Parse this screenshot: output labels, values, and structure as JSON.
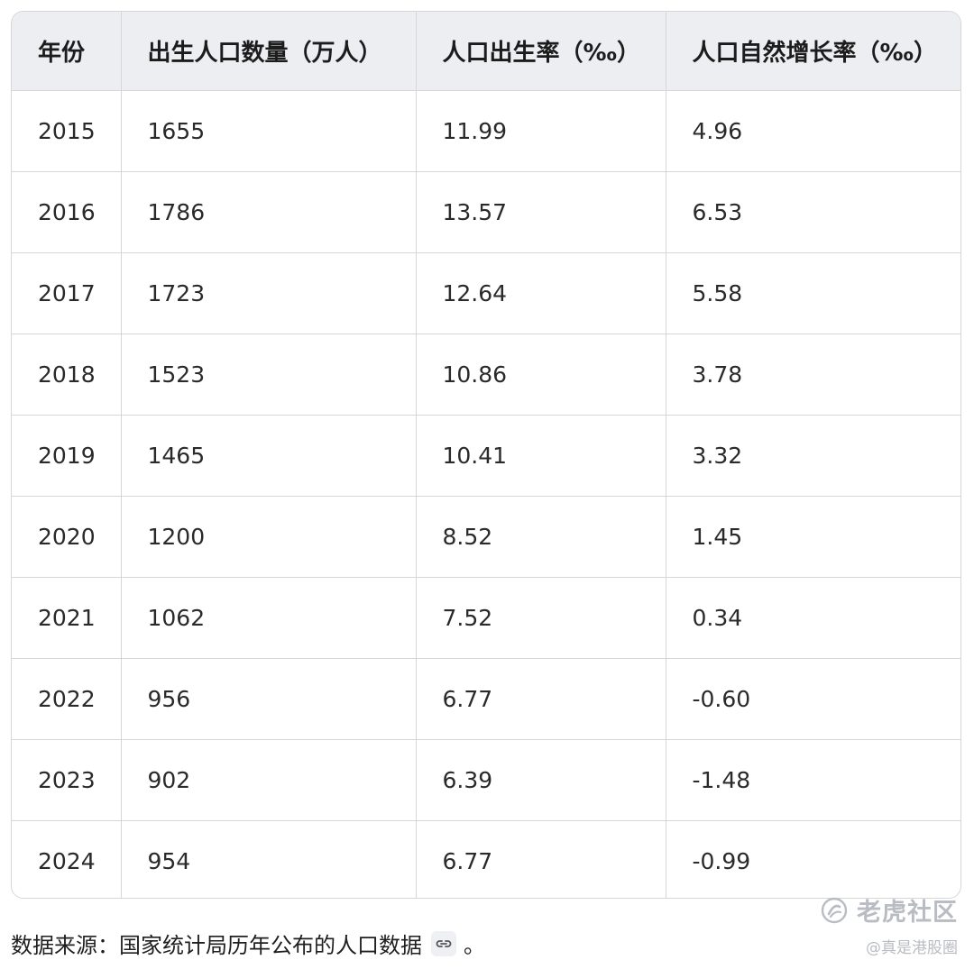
{
  "table": {
    "headers": [
      "年份",
      "出生人口数量（万人）",
      "人口出生率（‰）",
      "人口自然增长率（‰）"
    ],
    "rows": [
      [
        "2015",
        "1655",
        "11.99",
        "4.96"
      ],
      [
        "2016",
        "1786",
        "13.57",
        "6.53"
      ],
      [
        "2017",
        "1723",
        "12.64",
        "5.58"
      ],
      [
        "2018",
        "1523",
        "10.86",
        "3.78"
      ],
      [
        "2019",
        "1465",
        "10.41",
        "3.32"
      ],
      [
        "2020",
        "1200",
        "8.52",
        "1.45"
      ],
      [
        "2021",
        "1062",
        "7.52",
        "0.34"
      ],
      [
        "2022",
        "956",
        "6.77",
        "-0.60"
      ],
      [
        "2023",
        "902",
        "6.39",
        "-1.48"
      ],
      [
        "2024",
        "954",
        "6.77",
        "-0.99"
      ]
    ]
  },
  "footer": {
    "source_text": "数据来源：国家统计局历年公布的人口数据",
    "link_icon": "link-icon",
    "end_punct": "。"
  },
  "watermark": {
    "logo_icon": "tiger-logo-icon",
    "brand": "老虎社区",
    "handle": "@真是港股圈"
  },
  "colors": {
    "header_bg": "#eceef2",
    "border": "#d6d6d6",
    "watermark": "#b9bcc2"
  }
}
